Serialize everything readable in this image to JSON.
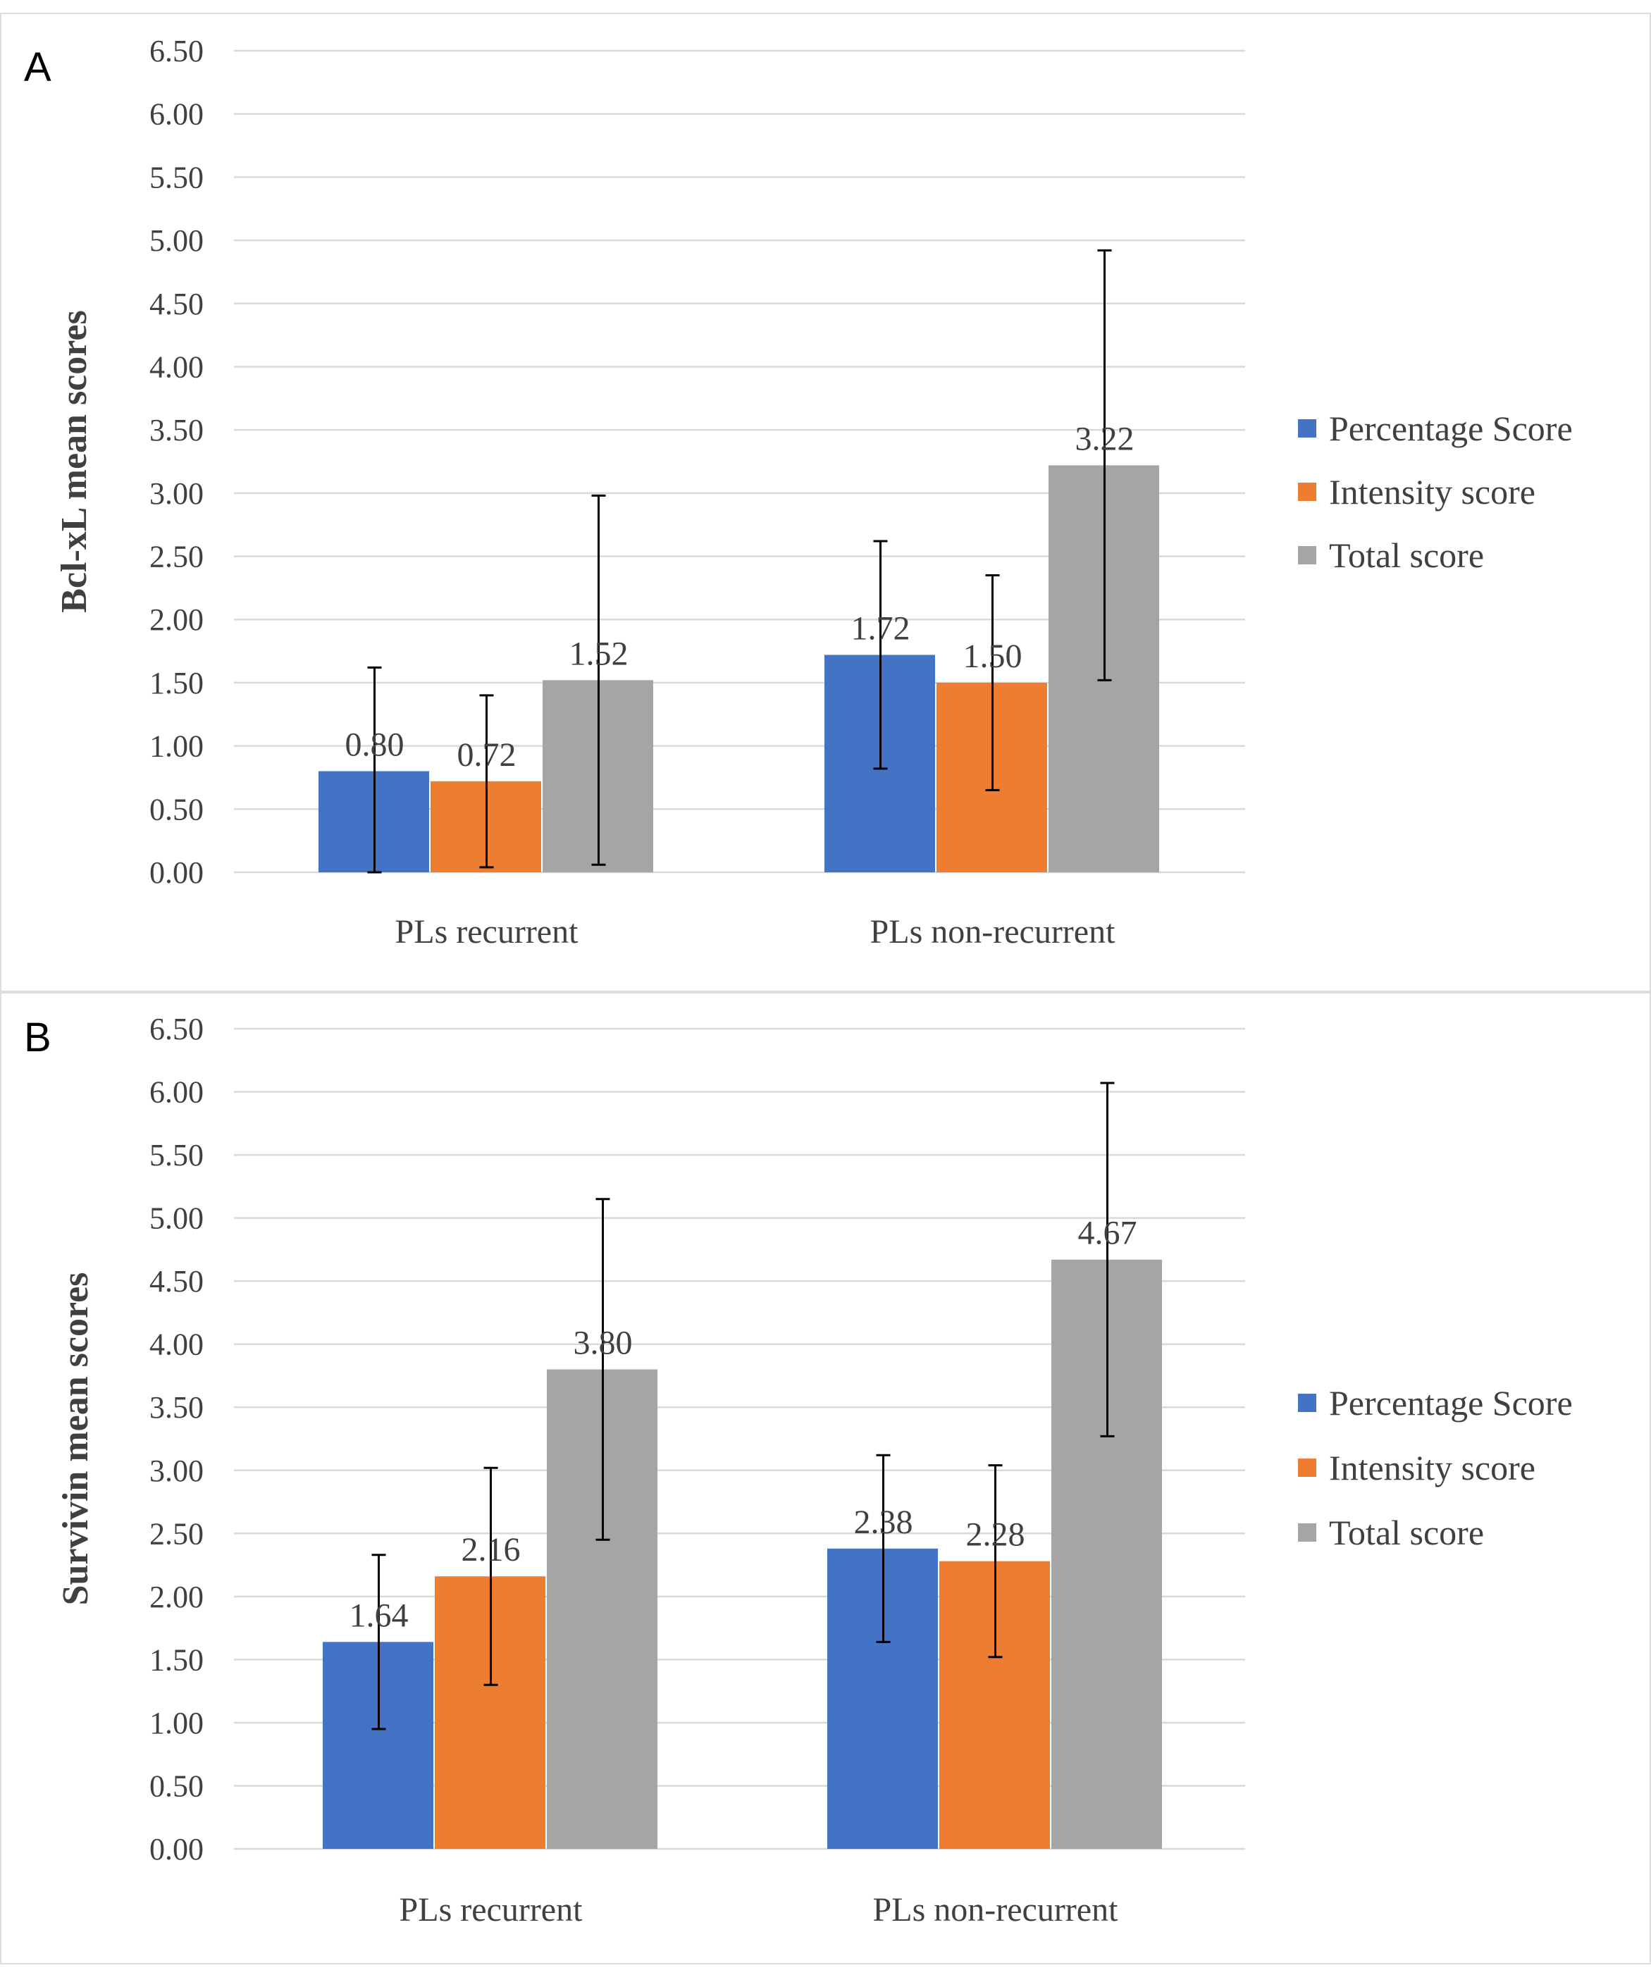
{
  "chart_data": [
    {
      "type": "bar",
      "panel_label": "A",
      "title": "",
      "ylabel": "Bcl-xL mean scores",
      "xlabel": "",
      "ylim": [
        0,
        6.5
      ],
      "yticks": [
        "0.00",
        "0.50",
        "1.00",
        "1.50",
        "2.00",
        "2.50",
        "3.00",
        "3.50",
        "4.00",
        "4.50",
        "5.00",
        "5.50",
        "6.00",
        "6.50"
      ],
      "categories": [
        "PLs recurrent",
        "PLs non-recurrent"
      ],
      "legend_position": "right",
      "series": [
        {
          "name": "Percentage Score",
          "color": "#4472c4",
          "values": [
            0.8,
            1.72
          ],
          "labels": [
            "0.80",
            "1.72"
          ],
          "errors": [
            0.82,
            0.9
          ]
        },
        {
          "name": "Intensity score",
          "color": "#ed7d31",
          "values": [
            0.72,
            1.5
          ],
          "labels": [
            "0.72",
            "1.50"
          ],
          "errors": [
            0.68,
            0.85
          ]
        },
        {
          "name": "Total score",
          "color": "#a5a5a5",
          "values": [
            1.52,
            3.22
          ],
          "labels": [
            "1.52",
            "3.22"
          ],
          "errors": [
            1.46,
            1.7
          ]
        }
      ]
    },
    {
      "type": "bar",
      "panel_label": "B",
      "title": "",
      "ylabel": "Survivin mean scores",
      "xlabel": "",
      "ylim": [
        0,
        6.5
      ],
      "yticks": [
        "0.00",
        "0.50",
        "1.00",
        "1.50",
        "2.00",
        "2.50",
        "3.00",
        "3.50",
        "4.00",
        "4.50",
        "5.00",
        "5.50",
        "6.00",
        "6.50"
      ],
      "categories": [
        "PLs recurrent",
        "PLs non-recurrent"
      ],
      "legend_position": "right",
      "series": [
        {
          "name": "Percentage Score",
          "color": "#4472c4",
          "values": [
            1.64,
            2.38
          ],
          "labels": [
            "1.64",
            "2.38"
          ],
          "errors": [
            0.69,
            0.74
          ]
        },
        {
          "name": "Intensity score",
          "color": "#ed7d31",
          "values": [
            2.16,
            2.28
          ],
          "labels": [
            "2.16",
            "2.28"
          ],
          "errors": [
            0.86,
            0.76
          ]
        },
        {
          "name": "Total score",
          "color": "#a5a5a5",
          "values": [
            3.8,
            4.67
          ],
          "labels": [
            "3.80",
            "4.67"
          ],
          "errors": [
            1.35,
            1.4
          ]
        }
      ]
    }
  ]
}
